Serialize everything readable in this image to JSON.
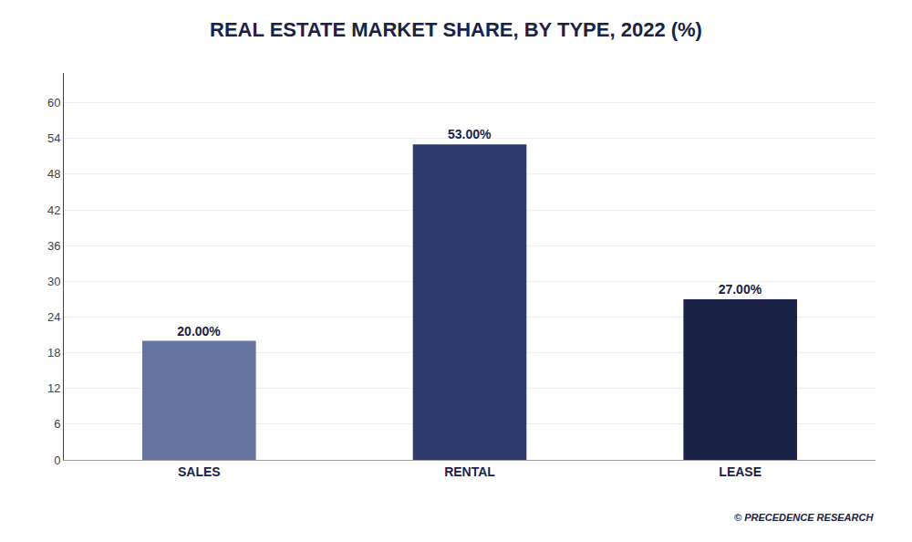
{
  "chart_data": {
    "type": "bar",
    "title": "REAL ESTATE MARKET SHARE, BY TYPE, 2022 (%)",
    "categories": [
      "SALES",
      "RENTAL",
      "LEASE"
    ],
    "values": [
      20.0,
      53.0,
      27.0
    ],
    "value_labels": [
      "20.00%",
      "53.00%",
      "27.00%"
    ],
    "data_labels": true,
    "colors": [
      "#6674a0",
      "#2e3a6e",
      "#1a2347"
    ],
    "ylim": [
      0,
      65
    ],
    "yticks": [
      0,
      6,
      12,
      18,
      24,
      30,
      36,
      42,
      48,
      54,
      60
    ],
    "grid": true,
    "annotations": [
      "© PRECEDENCE RESEARCH"
    ]
  }
}
